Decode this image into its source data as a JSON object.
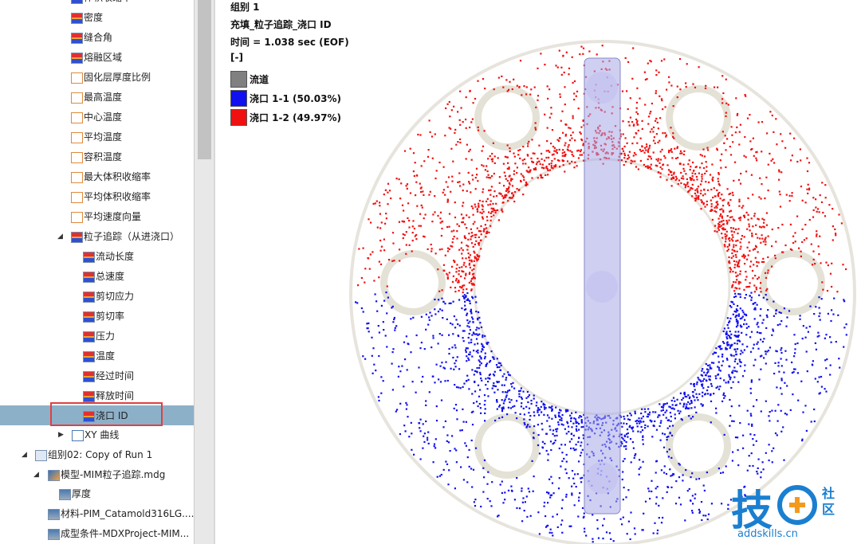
{
  "tree": {
    "items": [
      {
        "label": "体积收缩率"
      },
      {
        "label": "密度"
      },
      {
        "label": "缝合角"
      },
      {
        "label": "熔融区域"
      },
      {
        "label": "固化层厚度比例"
      },
      {
        "label": "最高温度"
      },
      {
        "label": "中心温度"
      },
      {
        "label": "平均温度"
      },
      {
        "label": "容积温度"
      },
      {
        "label": "最大体积收缩率"
      },
      {
        "label": "平均体积收缩率"
      },
      {
        "label": "平均速度向量"
      },
      {
        "label": "粒子追踪（从进浇口）"
      },
      {
        "label": "流动长度"
      },
      {
        "label": "总速度"
      },
      {
        "label": "剪切应力"
      },
      {
        "label": "剪切率"
      },
      {
        "label": "压力"
      },
      {
        "label": "温度"
      },
      {
        "label": "经过时间"
      },
      {
        "label": "释放时间"
      },
      {
        "label": "浇口 ID"
      },
      {
        "label": "XY 曲线"
      },
      {
        "label": "组别02: Copy of Run 1"
      },
      {
        "label": "模型-MIM粒子追踪.mdg"
      },
      {
        "label": "厚度"
      },
      {
        "label": "材料-PIM_Catamold316LG...."
      },
      {
        "label": "成型条件-MDXProject-MIM..."
      }
    ]
  },
  "viewport": {
    "group": "组别 1",
    "result": "充填_粒子追踪_浇口 ID",
    "time": "时间 = 1.038 sec (EOF)",
    "unit": "[-]",
    "legend": [
      {
        "label": "流道",
        "color": "#808080"
      },
      {
        "label": "浇口 1-1 (50.03%)",
        "color": "#1010f0"
      },
      {
        "label": "浇口 1-2 (49.97%)",
        "color": "#f01010"
      }
    ]
  },
  "watermark": {
    "char": "技",
    "side1": "社",
    "side2": "区",
    "site": "addskills.cn"
  }
}
